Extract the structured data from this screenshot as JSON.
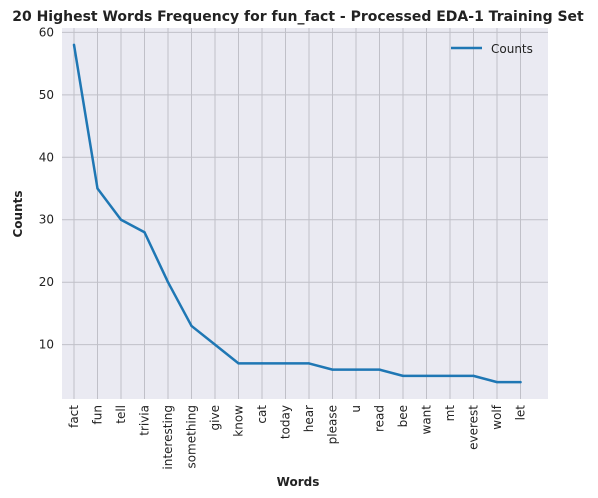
{
  "chart_data": {
    "type": "line",
    "title": "20 Highest Words Frequency for fun_fact - Processed EDA-1 Training Set",
    "xlabel": "Words",
    "ylabel": "Counts",
    "categories": [
      "fact",
      "fun",
      "tell",
      "trivia",
      "interesting",
      "something",
      "give",
      "know",
      "cat",
      "today",
      "hear",
      "please",
      "u",
      "read",
      "bee",
      "want",
      "mt",
      "everest",
      "wolf",
      "let"
    ],
    "series": [
      {
        "name": "Counts",
        "values": [
          58,
          35,
          30,
          28,
          20,
          13,
          10,
          7,
          7,
          7,
          7,
          6,
          6,
          6,
          5,
          5,
          5,
          5,
          4,
          4
        ]
      }
    ],
    "ylim": [
      1.3,
      60.7
    ],
    "yticks": [
      10,
      20,
      30,
      40,
      50,
      60
    ],
    "grid": true,
    "legend_position": "top-right",
    "colors": {
      "line": "#1f77b4",
      "plot_bg": "#eaeaf2",
      "grid": "#c0c0c8"
    }
  }
}
